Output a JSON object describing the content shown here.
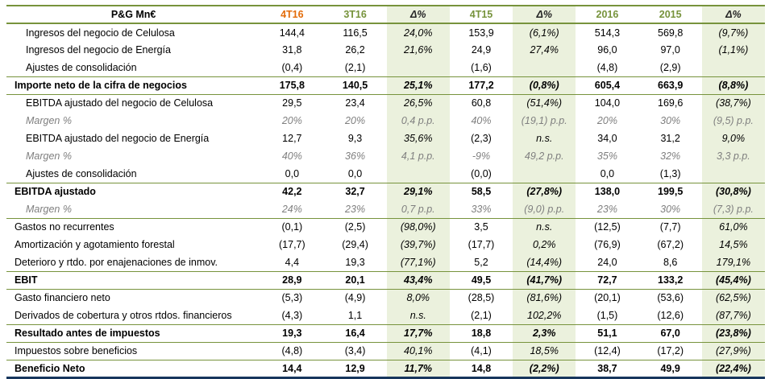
{
  "title": "P&G Mn€",
  "colors": {
    "separator_line": "#77933c",
    "header_accent_orange": "#e36c0a",
    "header_accent_olive": "#77933c",
    "delta_column_background": "#ebf1dd",
    "margin_row_text": "#7f7f7f",
    "bottom_thick_line": "#17365d"
  },
  "columns": [
    {
      "label": "P&G Mn€",
      "accent": "black"
    },
    {
      "label": "4T16",
      "accent": "orange"
    },
    {
      "label": "3T16",
      "accent": "olive"
    },
    {
      "label": "Δ%",
      "accent": "dark"
    },
    {
      "label": "4T15",
      "accent": "olive"
    },
    {
      "label": "Δ%",
      "accent": "dark"
    },
    {
      "label": "2016",
      "accent": "olive"
    },
    {
      "label": "2015",
      "accent": "olive"
    },
    {
      "label": "Δ%",
      "accent": "dark"
    }
  ],
  "rows": [
    {
      "label": "Ingresos del negocio de Celulosa",
      "style": "normal",
      "indent": true,
      "values": [
        "144,4",
        "116,5",
        "24,0%",
        "153,9",
        "(6,1%)",
        "514,3",
        "569,8",
        "(9,7%)"
      ]
    },
    {
      "label": "Ingresos del negocio de Energía",
      "style": "normal",
      "indent": true,
      "values": [
        "31,8",
        "26,2",
        "21,6%",
        "24,9",
        "27,4%",
        "96,0",
        "97,0",
        "(1,1%)"
      ]
    },
    {
      "label": "Ajustes de consolidación",
      "style": "normal",
      "indent": true,
      "values": [
        "(0,4)",
        "(2,1)",
        "",
        "(1,6)",
        "",
        "(4,8)",
        "(2,9)",
        ""
      ]
    },
    {
      "label": "Importe neto de la cifra de negocios",
      "style": "total",
      "indent": false,
      "border_top": true,
      "border_bottom": true,
      "values": [
        "175,8",
        "140,5",
        "25,1%",
        "177,2",
        "(0,8%)",
        "605,4",
        "663,9",
        "(8,8%)"
      ]
    },
    {
      "label": "EBITDA ajustado del negocio de Celulosa",
      "style": "normal",
      "indent": true,
      "values": [
        "29,5",
        "23,4",
        "26,5%",
        "60,8",
        "(51,4%)",
        "104,0",
        "169,6",
        "(38,7%)"
      ]
    },
    {
      "label": "Margen %",
      "style": "margin",
      "indent": true,
      "values": [
        "20%",
        "20%",
        "0,4 p.p.",
        "40%",
        "(19,1) p.p.",
        "20%",
        "30%",
        "(9,5) p.p."
      ]
    },
    {
      "label": "EBITDA ajustado del negocio de Energía",
      "style": "normal",
      "indent": true,
      "values": [
        "12,7",
        "9,3",
        "35,6%",
        "(2,3)",
        "n.s.",
        "34,0",
        "31,2",
        "9,0%"
      ]
    },
    {
      "label": "Margen %",
      "style": "margin",
      "indent": true,
      "values": [
        "40%",
        "36%",
        "4,1 p.p.",
        "-9%",
        "49,2 p.p.",
        "35%",
        "32%",
        "3,3 p.p."
      ]
    },
    {
      "label": "Ajustes de consolidación",
      "style": "normal",
      "indent": true,
      "values": [
        "0,0",
        "0,0",
        "",
        "(0,0)",
        "",
        "0,0",
        "(1,3)",
        ""
      ]
    },
    {
      "label": "EBITDA ajustado",
      "style": "total",
      "indent": false,
      "border_top": true,
      "values": [
        "42,2",
        "32,7",
        "29,1%",
        "58,5",
        "(27,8%)",
        "138,0",
        "199,5",
        "(30,8%)"
      ]
    },
    {
      "label": "Margen %",
      "style": "margin",
      "indent": true,
      "border_bottom": true,
      "values": [
        "24%",
        "23%",
        "0,7 p.p.",
        "33%",
        "(9,0) p.p.",
        "23%",
        "30%",
        "(7,3) p.p."
      ]
    },
    {
      "label": "Gastos no recurrentes",
      "style": "normal",
      "indent": false,
      "values": [
        "(0,1)",
        "(2,5)",
        "(98,0%)",
        "3,5",
        "n.s.",
        "(12,5)",
        "(7,7)",
        "61,0%"
      ]
    },
    {
      "label": "Amortización y agotamiento forestal",
      "style": "normal",
      "indent": false,
      "values": [
        "(17,7)",
        "(29,4)",
        "(39,7%)",
        "(17,7)",
        "0,2%",
        "(76,9)",
        "(67,2)",
        "14,5%"
      ]
    },
    {
      "label": "Deterioro y rtdo. por enajenaciones de inmov.",
      "style": "normal",
      "indent": false,
      "values": [
        "4,4",
        "19,3",
        "(77,1%)",
        "5,2",
        "(14,4%)",
        "24,0",
        "8,6",
        "179,1%"
      ]
    },
    {
      "label": "EBIT",
      "style": "total",
      "indent": false,
      "border_top": true,
      "border_bottom": true,
      "values": [
        "28,9",
        "20,1",
        "43,4%",
        "49,5",
        "(41,7%)",
        "72,7",
        "133,2",
        "(45,4%)"
      ]
    },
    {
      "label": "Gasto financiero neto",
      "style": "normal",
      "indent": false,
      "values": [
        "(5,3)",
        "(4,9)",
        "8,0%",
        "(28,5)",
        "(81,6%)",
        "(20,1)",
        "(53,6)",
        "(62,5%)"
      ]
    },
    {
      "label": "Derivados de cobertura y otros rtdos. financieros",
      "style": "normal",
      "indent": false,
      "values": [
        "(4,3)",
        "1,1",
        "n.s.",
        "(2,1)",
        "102,2%",
        "(1,5)",
        "(12,6)",
        "(87,7%)"
      ]
    },
    {
      "label": "Resultado antes de impuestos",
      "style": "total",
      "indent": false,
      "border_top": true,
      "border_bottom": true,
      "values": [
        "19,3",
        "16,4",
        "17,7%",
        "18,8",
        "2,3%",
        "51,1",
        "67,0",
        "(23,8%)"
      ]
    },
    {
      "label": "Impuestos sobre beneficios",
      "style": "normal",
      "indent": false,
      "values": [
        "(4,8)",
        "(3,4)",
        "40,1%",
        "(4,1)",
        "18,5%",
        "(12,4)",
        "(17,2)",
        "(27,9%)"
      ]
    },
    {
      "label": "Beneficio Neto",
      "style": "total",
      "indent": false,
      "border_top": true,
      "border_bottom_thick": true,
      "values": [
        "14,4",
        "12,9",
        "11,7%",
        "14,8",
        "(2,2%)",
        "38,7",
        "49,9",
        "(22,4%)"
      ]
    }
  ]
}
